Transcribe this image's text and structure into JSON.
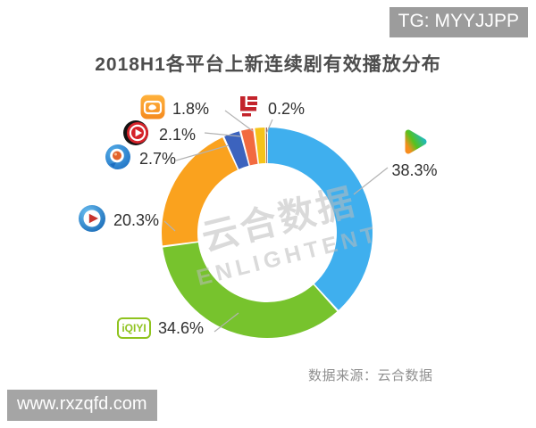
{
  "badges": {
    "top_right": "TG: MYYJJPP",
    "bottom_left": "www.rxzqfd.com"
  },
  "title": "2018H1各平台上新连续剧有效播放分布",
  "source_note": "数据来源：云合数据",
  "watermark": {
    "line1": "云合数据",
    "line2": "ENLIGHTENT"
  },
  "icons": {
    "iqiyi_text": "iQIYI"
  },
  "chart_data": {
    "type": "pie",
    "variant": "donut",
    "title": "2018H1各平台上新连续剧有效播放分布",
    "unit": "percent",
    "start_angle_deg": 0,
    "direction": "clockwise",
    "legend_position": "around-callouts",
    "series": [
      {
        "platform_icon": "tencent-video-icon",
        "label": "38.3%",
        "value": 38.3,
        "color": "#3FAFEE"
      },
      {
        "platform_icon": "iqiyi-icon",
        "label": "34.6%",
        "value": 34.6,
        "color": "#77C32D"
      },
      {
        "platform_icon": "youku-icon",
        "label": "20.3%",
        "value": 20.3,
        "color": "#FAA21E"
      },
      {
        "platform_icon": "pptv-icon",
        "label": "2.7%",
        "value": 2.7,
        "color": "#3C63BE"
      },
      {
        "platform_icon": "sohu-video-icon",
        "label": "2.1%",
        "value": 2.1,
        "color": "#F26A40"
      },
      {
        "platform_icon": "mango-tv-icon",
        "label": "1.8%",
        "value": 1.8,
        "color": "#F6C319"
      },
      {
        "platform_icon": "letv-icon",
        "label": "0.2%",
        "value": 0.2,
        "color": "#7A2B28"
      }
    ],
    "source_note": "数据来源：云合数据"
  }
}
